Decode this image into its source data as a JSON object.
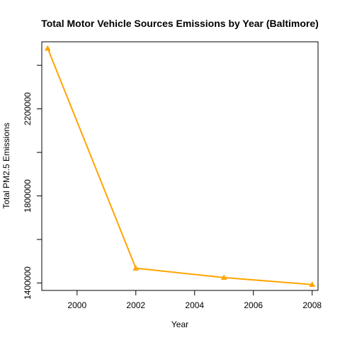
{
  "chart_data": {
    "type": "line",
    "title": "Total Motor Vehicle Sources Emissions by Year (Baltimore)",
    "xlabel": "Year",
    "ylabel": "Total PM2.5 Emissions",
    "x": [
      1999,
      2002,
      2005,
      2008
    ],
    "series": [
      {
        "values": [
          2478000,
          1468000,
          1425000,
          1393000
        ],
        "color": "#FFA500",
        "marker": "triangle"
      }
    ],
    "xlim": [
      1998.8,
      2008.2
    ],
    "ylim": [
      1366000,
      2508000
    ],
    "xticks": [
      2000,
      2002,
      2004,
      2006,
      2008
    ],
    "xtick_labels": [
      "2000",
      "2002",
      "2004",
      "2006",
      "2008"
    ],
    "yticks": [
      1400000,
      1600000,
      1800000,
      2000000,
      2200000,
      2400000
    ],
    "ytick_labels": [
      "1400000",
      "",
      "1800000",
      "",
      "2200000",
      ""
    ],
    "grid": false,
    "legend": "none"
  }
}
